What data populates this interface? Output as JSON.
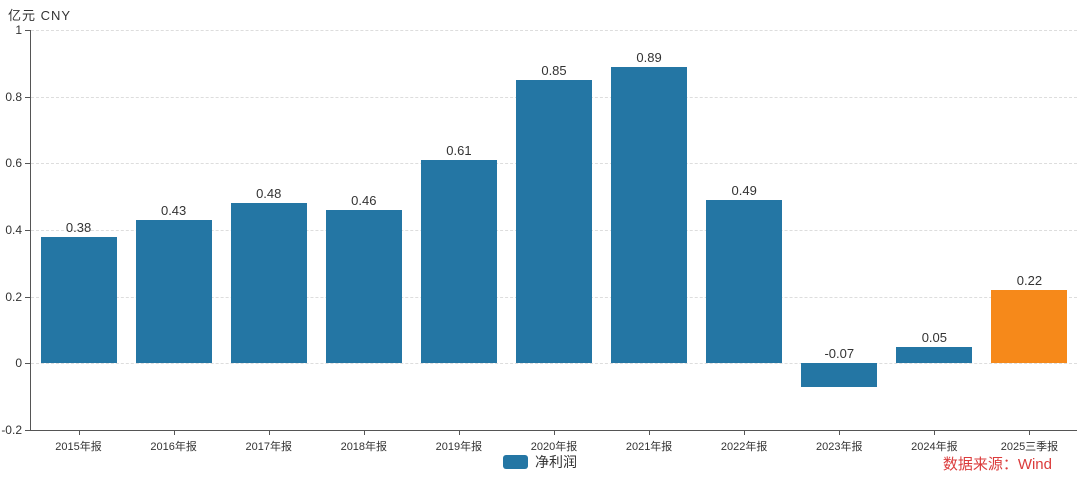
{
  "chart": {
    "unit_label": "亿元 CNY",
    "source_label": "数据来源：Wind",
    "source_color": "#DB3B3B",
    "axis_color": "#555555",
    "grid_color": "#dddddd",
    "text_color": "#333333"
  },
  "chart_data": {
    "type": "bar",
    "title": "",
    "unit_label": "亿元 CNY",
    "categories": [
      "2015年报",
      "2016年报",
      "2017年报",
      "2018年报",
      "2019年报",
      "2020年报",
      "2021年报",
      "2022年报",
      "2023年报",
      "2024年报",
      "2025三季报"
    ],
    "values": [
      0.38,
      0.43,
      0.48,
      0.46,
      0.61,
      0.85,
      0.89,
      0.49,
      -0.07,
      0.05,
      0.22
    ],
    "data_labels": [
      "0.38",
      "0.43",
      "0.48",
      "0.46",
      "0.61",
      "0.85",
      "0.89",
      "0.49",
      "-0.07",
      "0.05",
      "0.22"
    ],
    "legend": "净利润",
    "legend_position": "bottom-center",
    "xlabel": "",
    "ylabel": "亿元 CNY",
    "ylim": [
      -0.2,
      1
    ],
    "ytick_step": 0.2,
    "ytick_labels": [
      "1",
      "0.8",
      "0.6",
      "0.4",
      "0.2",
      "0",
      "-0.2"
    ],
    "grid": "dashed-horizontal",
    "bar_color": "#2476A4",
    "highlight_color": "#F6891A",
    "highlight_index": 10,
    "source": "数据来源：Wind"
  }
}
